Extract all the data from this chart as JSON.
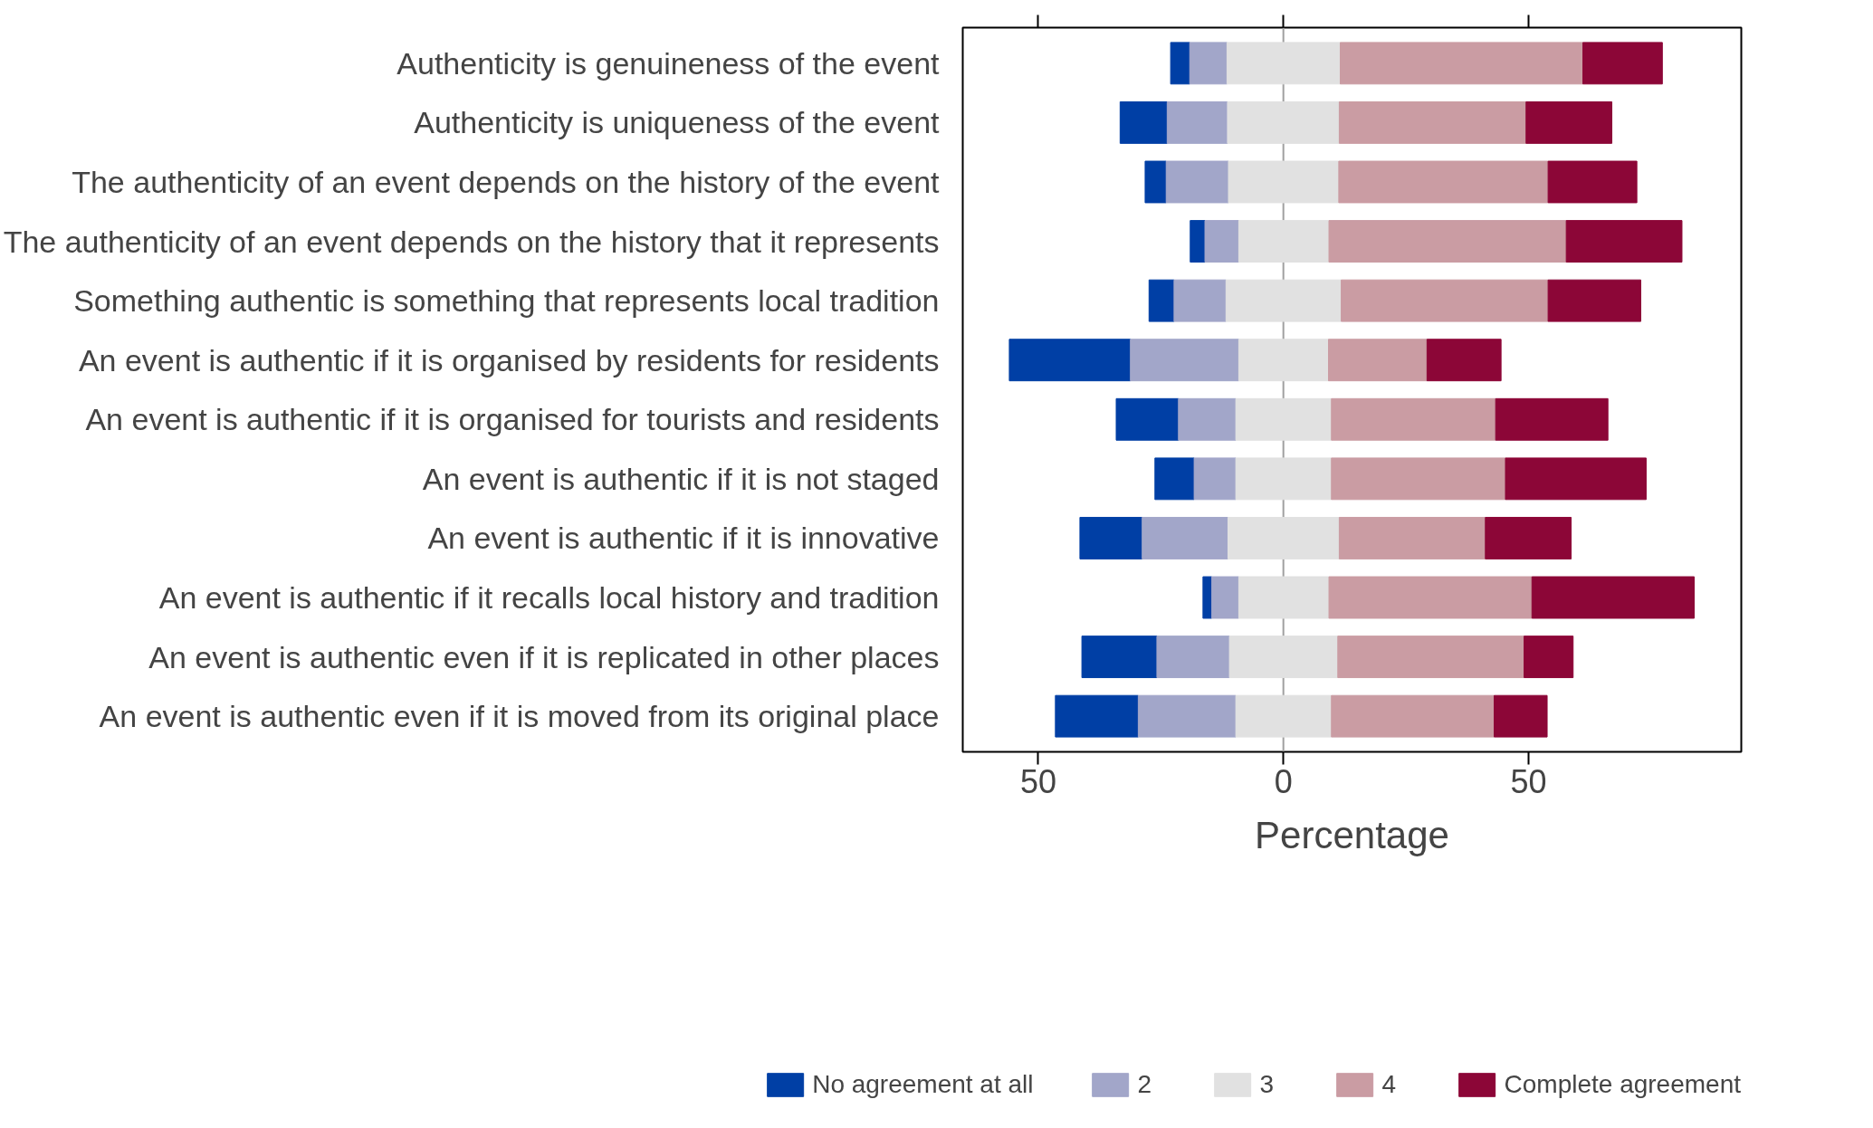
{
  "chart_data": {
    "type": "bar",
    "orientation": "horizontal",
    "xlabel": "Percentage",
    "categories": [
      "Authenticity is genuineness of the event",
      "Authenticity is uniqueness of the event",
      "The authenticity of an event depends on the history of the event",
      "The authenticity of an event depends on the history that it represents",
      "Something authentic is something that represents local tradition",
      "An event is authentic if it is organised by residents for residents",
      "An event is authentic if it is organised for tourists and residents",
      "An event is authentic if it is not staged",
      "An event is authentic if it is innovative",
      "An event is authentic if it recalls local history and tradition",
      "An event is authentic even if it is replicated in other places",
      "An event is authentic even if it is moved from its original place"
    ],
    "series": [
      {
        "name": "No agreement at all",
        "color": "#003fa5",
        "base": [
          -23.0,
          -33.3,
          -28.2,
          -19.0,
          -27.4,
          -55.9,
          -34.1,
          -26.2,
          -41.5,
          -16.4,
          -41.1,
          -46.5
        ],
        "values": [
          3.9,
          9.6,
          4.3,
          3.0,
          5.1,
          24.7,
          12.7,
          8.0,
          12.7,
          1.8,
          15.3,
          16.9
        ]
      },
      {
        "name": "2",
        "color": "#a2a6c9",
        "base": [
          -19.1,
          -23.7,
          -23.9,
          -16.0,
          -22.3,
          -31.2,
          -21.4,
          -18.2,
          -28.8,
          -14.6,
          -25.8,
          -29.6
        ],
        "values": [
          7.6,
          12.3,
          12.7,
          6.9,
          10.6,
          22.1,
          11.7,
          8.5,
          17.5,
          5.5,
          14.8,
          19.9
        ]
      },
      {
        "name": "3",
        "color": "#e1e1e1",
        "base": [
          -11.5,
          -11.4,
          -11.2,
          -9.1,
          -11.7,
          -9.1,
          -9.7,
          -9.7,
          -11.3,
          -9.1,
          -11.0,
          -9.7
        ],
        "values": [
          23.1,
          22.8,
          22.5,
          18.4,
          23.5,
          18.3,
          19.5,
          19.5,
          22.7,
          18.4,
          22.1,
          19.5
        ]
      },
      {
        "name": "4",
        "color": "#ca9ca3",
        "base": [
          11.6,
          11.4,
          11.3,
          9.3,
          11.8,
          9.2,
          9.8,
          9.8,
          11.4,
          9.3,
          11.1,
          9.8
        ],
        "values": [
          49.5,
          38.1,
          42.7,
          48.4,
          42.2,
          20.1,
          33.5,
          35.5,
          29.8,
          41.4,
          38.0,
          33.2
        ]
      },
      {
        "name": "Complete agreement",
        "color": "#8c0637",
        "base": [
          61.1,
          49.5,
          54.0,
          57.7,
          54.0,
          29.3,
          43.3,
          45.3,
          41.2,
          50.7,
          49.1,
          43.0
        ],
        "values": [
          16.2,
          17.5,
          18.1,
          23.6,
          18.9,
          15.1,
          22.9,
          28.7,
          17.5,
          33.1,
          10.0,
          10.8
        ]
      }
    ],
    "xlim": [
      -65.4,
      93.4
    ],
    "xticks": [
      {
        "value": -50,
        "label": "50"
      },
      0,
      50
    ],
    "ref_lines": [
      {
        "axis": "x",
        "value": 0,
        "color": "#a0a0a0"
      }
    ],
    "grid": false,
    "legend": "bottom"
  }
}
